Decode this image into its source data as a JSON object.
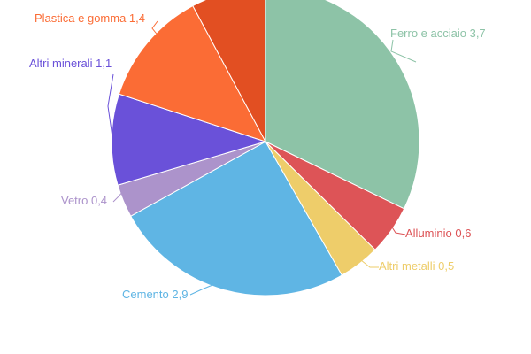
{
  "chart_data": {
    "type": "pie",
    "title": "",
    "start_angle_deg": 0,
    "direction": "clockwise",
    "slices": [
      {
        "label": "Ferro e acciaio",
        "value": 3.7,
        "display": "3,7",
        "color": "#8dc3a7"
      },
      {
        "label": "Alluminio",
        "value": 0.6,
        "display": "0,6",
        "color": "#dd5457"
      },
      {
        "label": "Altri metalli",
        "value": 0.5,
        "display": "0,5",
        "color": "#eecd6a"
      },
      {
        "label": "Cemento",
        "value": 2.9,
        "display": "2,9",
        "color": "#5fb5e4"
      },
      {
        "label": "Vetro",
        "value": 0.4,
        "display": "0,4",
        "color": "#ac93cb"
      },
      {
        "label": "Altri minerali",
        "value": 1.1,
        "display": "1,1",
        "color": "#6a51d9"
      },
      {
        "label": "Plastica e gomma",
        "value": 1.4,
        "display": "1,4",
        "color": "#fb6c35"
      },
      {
        "label": "",
        "value": 0.9,
        "display": "",
        "color": "#e24f22"
      }
    ]
  }
}
